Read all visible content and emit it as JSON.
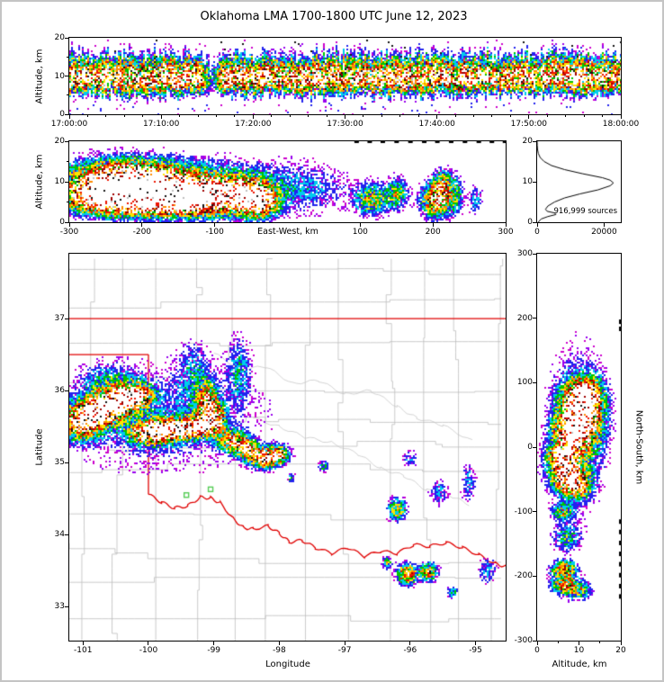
{
  "colors": {
    "background": "#ffffff",
    "frame": "#000000",
    "state_border": "#e00000",
    "county_line": "#bcbcbc",
    "river": "#c2c2c2",
    "station_marker": "#55cc55",
    "histogram_line": "#000000",
    "density_scale_low_to_high": [
      "#cc00cc",
      "#2222ee",
      "#00ccee",
      "#00c400",
      "#ffe400",
      "#ff8c00",
      "#ee1500",
      "#a00000",
      "#141414",
      "#c0c0c0",
      "#ffffff"
    ]
  },
  "chart_data": {
    "title": "Oklahoma LMA 1700-1800 UTC June 12, 2023",
    "axis_labels": {
      "altitude": "Altitude, km",
      "east_west": "East-West, km",
      "longitude": "Longitude",
      "latitude": "Latitude",
      "north_south": "North-South, km"
    },
    "panels": {
      "time_height": {
        "type": "heatmap",
        "x_axis": {
          "tick_labels": [
            "17:00:00",
            "17:10:00",
            "17:20:00",
            "17:30:00",
            "17:40:00",
            "17:50:00",
            "18:00:00"
          ],
          "tick_minutes": [
            0,
            10,
            20,
            30,
            40,
            50,
            60
          ],
          "minor_tick_minutes": 2,
          "range_minutes": [
            0,
            60
          ]
        },
        "y_axis": {
          "ticks": [
            0,
            10,
            20
          ],
          "minor_ticks": [
            5,
            15
          ],
          "range": [
            0,
            20
          ]
        },
        "band": {
          "center_alt_km": 9.3,
          "gap_time_frac": 0.257,
          "gap_width_frac": 0.013
        },
        "description": "Dense VHF lightning-source band 5-15 km altitude through the hour, brief lull near 17:15 UTC"
      },
      "ew_altitude": {
        "type": "density",
        "x_axis": {
          "ticks": [
            -300,
            -200,
            -100,
            100,
            200,
            300
          ],
          "range": [
            -300,
            300
          ]
        },
        "y_axis": {
          "ticks": [
            0,
            10,
            20
          ],
          "minor_ticks": [
            5,
            15
          ],
          "range": [
            0,
            20
          ]
        },
        "blobs": [
          [
            -225,
            10.5,
            45,
            3.0,
            1.02
          ],
          [
            -258,
            7,
            32,
            2.6,
            0.9
          ],
          [
            -165,
            8,
            45,
            3.0,
            0.96
          ],
          [
            -118,
            6.5,
            30,
            2.6,
            0.88
          ],
          [
            -190,
            4.5,
            60,
            2.0,
            0.75
          ],
          [
            -62,
            7,
            24,
            2.8,
            0.85
          ],
          [
            -40,
            5,
            16,
            2.4,
            0.95
          ],
          [
            -150,
            9,
            115,
            4.5,
            0.3
          ],
          [
            25,
            8,
            40,
            4,
            0.13
          ],
          [
            115,
            5.5,
            14,
            2.4,
            0.5
          ],
          [
            150,
            7,
            10,
            2.4,
            0.45
          ],
          [
            205,
            5.5,
            13,
            2.6,
            0.9
          ],
          [
            213,
            9.5,
            8,
            2.2,
            0.5
          ],
          [
            232,
            7,
            7,
            3.2,
            0.3
          ],
          [
            259,
            5.5,
            6,
            2.5,
            0.25
          ]
        ],
        "top_edge_dashes_ew_km": [
          92,
          110,
          128,
          147,
          166,
          185,
          203,
          222,
          241,
          260,
          278,
          296
        ]
      },
      "histogram": {
        "type": "line",
        "annotation": "916,999 sources",
        "x_axis": {
          "ticks": [
            0,
            20000
          ],
          "range": [
            0,
            25000
          ]
        },
        "y_axis": {
          "ticks": [
            0,
            10,
            20
          ],
          "range": [
            0,
            20
          ]
        },
        "points_alt_count": [
          [
            0,
            300
          ],
          [
            0.8,
            1200
          ],
          [
            1.4,
            3200
          ],
          [
            1.9,
            5600
          ],
          [
            2.3,
            5200
          ],
          [
            2.7,
            3000
          ],
          [
            3.2,
            2500
          ],
          [
            4,
            3200
          ],
          [
            5,
            5200
          ],
          [
            6,
            8200
          ],
          [
            7,
            12800
          ],
          [
            8,
            18200
          ],
          [
            9,
            21800
          ],
          [
            9.7,
            22800
          ],
          [
            10.4,
            21800
          ],
          [
            11,
            19500
          ],
          [
            12,
            13500
          ],
          [
            13,
            8200
          ],
          [
            14,
            4300
          ],
          [
            15,
            2100
          ],
          [
            16,
            900
          ],
          [
            17,
            350
          ],
          [
            18,
            120
          ],
          [
            19,
            40
          ],
          [
            20,
            0
          ]
        ]
      },
      "map": {
        "type": "density_map",
        "x_axis": {
          "ticks": [
            -101,
            -100,
            -99,
            -98,
            -97,
            -96,
            -95
          ],
          "range": [
            -101.21,
            -94.54
          ]
        },
        "y_axis": {
          "ticks": [
            33,
            34,
            35,
            36,
            37
          ],
          "range": [
            32.53,
            37.9
          ]
        },
        "state_borders": {
          "kansas_line_lat": 37,
          "panhandle_line_lat": 36.5,
          "texas_line_lon": -100,
          "texas_line_lat_range": [
            34.56,
            36.5
          ],
          "red_river": [
            [
              -100.0,
              34.56
            ],
            [
              -99.8,
              34.45
            ],
            [
              -99.6,
              34.37
            ],
            [
              -99.4,
              34.4
            ],
            [
              -99.21,
              34.52
            ],
            [
              -99.05,
              34.51
            ],
            [
              -98.9,
              34.44
            ],
            [
              -98.7,
              34.22
            ],
            [
              -98.55,
              34.1
            ],
            [
              -98.4,
              34.08
            ],
            [
              -98.17,
              34.12
            ],
            [
              -98.0,
              34.02
            ],
            [
              -97.85,
              33.9
            ],
            [
              -97.65,
              33.92
            ],
            [
              -97.45,
              33.82
            ],
            [
              -97.2,
              33.74
            ],
            [
              -96.95,
              33.82
            ],
            [
              -96.7,
              33.7
            ],
            [
              -96.45,
              33.77
            ],
            [
              -96.2,
              33.74
            ],
            [
              -95.95,
              33.86
            ],
            [
              -95.7,
              33.84
            ],
            [
              -95.45,
              33.89
            ],
            [
              -95.2,
              33.82
            ],
            [
              -94.95,
              33.72
            ],
            [
              -94.7,
              33.6
            ],
            [
              -94.54,
              33.56
            ]
          ]
        },
        "map_features": {
          "county_grid": {
            "lat_step": 0.45,
            "lon_step": 0.5,
            "seed": 11
          },
          "rivers": [
            [
              [
                -99.0,
                36.52
              ],
              [
                -98.6,
                36.3
              ],
              [
                -98.2,
                36.33
              ],
              [
                -97.8,
                36.1
              ],
              [
                -97.4,
                36.14
              ],
              [
                -97.0,
                35.95
              ],
              [
                -96.6,
                36.0
              ],
              [
                -96.2,
                35.78
              ],
              [
                -95.9,
                35.62
              ],
              [
                -95.5,
                35.52
              ],
              [
                -95.05,
                35.3
              ]
            ],
            [
              [
                -98.4,
                35.62
              ],
              [
                -98.0,
                35.5
              ],
              [
                -97.6,
                35.35
              ],
              [
                -97.2,
                35.28
              ],
              [
                -96.8,
                35.12
              ],
              [
                -96.45,
                34.92
              ],
              [
                -96.1,
                34.82
              ],
              [
                -95.75,
                34.62
              ],
              [
                -95.4,
                34.55
              ],
              [
                -95.1,
                34.42
              ]
            ]
          ]
        },
        "stations": [
          [
            -99.42,
            34.55
          ],
          [
            -99.05,
            34.63
          ]
        ],
        "blobs": [
          [
            -101.05,
            35.55,
            0.22,
            0.14,
            0.95
          ],
          [
            -100.78,
            35.7,
            0.2,
            0.13,
            1.03
          ],
          [
            -100.48,
            35.82,
            0.2,
            0.12,
            1.0
          ],
          [
            -100.22,
            35.93,
            0.18,
            0.11,
            0.97
          ],
          [
            -100.02,
            35.42,
            0.18,
            0.1,
            0.9
          ],
          [
            -99.74,
            35.45,
            0.18,
            0.1,
            0.92
          ],
          [
            -99.45,
            35.47,
            0.16,
            0.09,
            0.88
          ],
          [
            -99.18,
            35.52,
            0.14,
            0.09,
            0.8
          ],
          [
            -99.1,
            35.8,
            0.1,
            0.18,
            0.82
          ],
          [
            -98.95,
            35.6,
            0.09,
            0.13,
            0.7
          ],
          [
            -98.72,
            35.3,
            0.13,
            0.09,
            0.78
          ],
          [
            -98.5,
            35.2,
            0.11,
            0.08,
            0.85
          ],
          [
            -98.22,
            35.07,
            0.16,
            0.09,
            1.0
          ],
          [
            -98.0,
            35.12,
            0.09,
            0.07,
            0.72
          ],
          [
            -99.8,
            35.62,
            1.05,
            0.5,
            0.18
          ],
          [
            -99.3,
            36.25,
            0.16,
            0.3,
            0.2
          ],
          [
            -98.62,
            36.3,
            0.12,
            0.3,
            0.24
          ],
          [
            -100.6,
            36.08,
            0.28,
            0.18,
            0.26
          ],
          [
            -96.2,
            34.35,
            0.09,
            0.1,
            0.55
          ],
          [
            -96.05,
            33.45,
            0.1,
            0.09,
            0.8
          ],
          [
            -95.72,
            33.48,
            0.09,
            0.08,
            0.7
          ],
          [
            -96.35,
            33.62,
            0.05,
            0.06,
            0.4
          ],
          [
            -95.35,
            33.2,
            0.06,
            0.06,
            0.3
          ],
          [
            -95.1,
            34.72,
            0.08,
            0.18,
            0.22
          ],
          [
            -94.82,
            33.5,
            0.1,
            0.14,
            0.22
          ],
          [
            -97.32,
            34.95,
            0.05,
            0.05,
            0.35
          ],
          [
            -97.82,
            34.78,
            0.04,
            0.05,
            0.3
          ],
          [
            -95.55,
            34.6,
            0.1,
            0.12,
            0.22
          ],
          [
            -96.0,
            35.05,
            0.08,
            0.08,
            0.2
          ]
        ]
      },
      "ns_altitude": {
        "type": "density",
        "x_axis": {
          "ticks": [
            0,
            10,
            20
          ],
          "minor_ticks": [
            5,
            15
          ],
          "range": [
            0,
            20
          ]
        },
        "y_axis": {
          "ticks": [
            -300,
            -200,
            -100,
            0,
            100,
            200,
            300
          ],
          "range": [
            -300,
            300
          ]
        },
        "blobs": [
          [
            10,
            55,
            3.0,
            26,
            1.0
          ],
          [
            8.5,
            20,
            2.8,
            18,
            0.92
          ],
          [
            11.5,
            80,
            2.4,
            16,
            0.88
          ],
          [
            7,
            -40,
            2.6,
            16,
            0.98
          ],
          [
            9.5,
            -60,
            2.2,
            12,
            0.8
          ],
          [
            6,
            -12,
            2.4,
            10,
            0.85
          ],
          [
            9,
            30,
            4.0,
            80,
            0.26
          ],
          [
            6,
            -100,
            1.8,
            8,
            0.45
          ],
          [
            7,
            -140,
            2.2,
            14,
            0.3
          ],
          [
            6.5,
            -190,
            2.0,
            9,
            0.7
          ],
          [
            6.5,
            -215,
            2.2,
            9,
            0.6
          ],
          [
            10,
            -222,
            2.0,
            10,
            0.4
          ],
          [
            14,
            40,
            2.5,
            50,
            0.2
          ]
        ],
        "right_edge_dashes_ns_km": [
          198,
          187,
          -112,
          -128,
          -145,
          -162,
          -178,
          -195,
          -212,
          -228
        ]
      }
    }
  }
}
